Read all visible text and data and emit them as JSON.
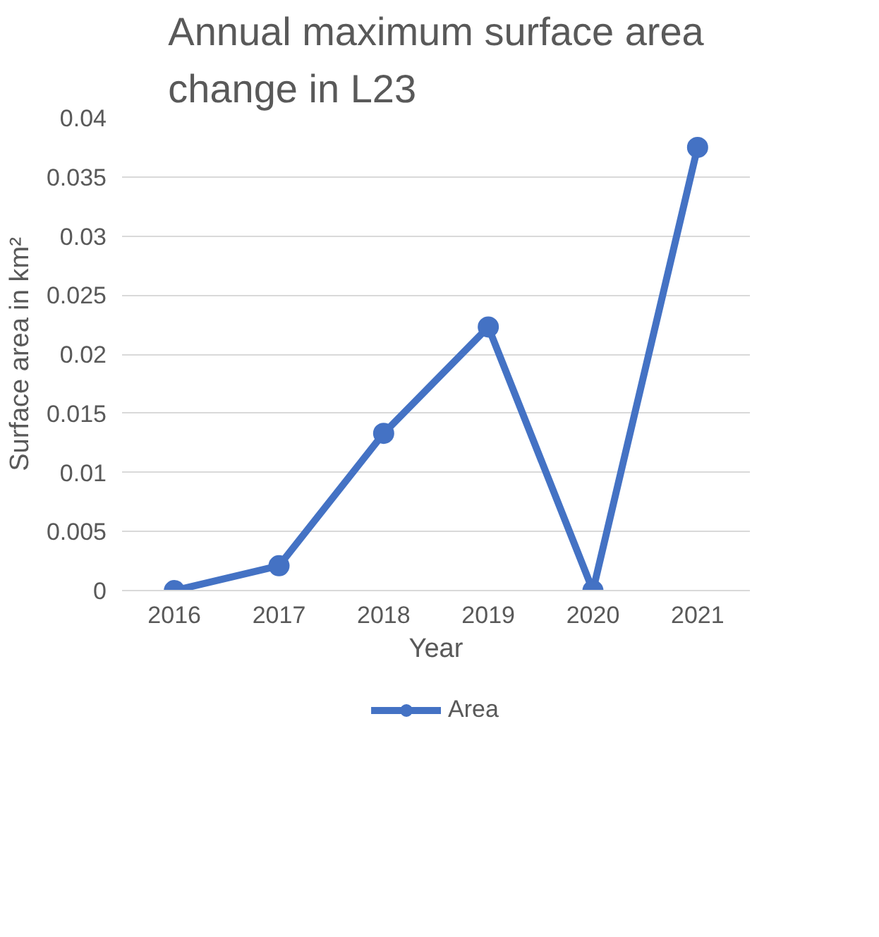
{
  "chart_data": {
    "type": "line",
    "title": "Annual maximum surface area change in L23",
    "xlabel": "Year",
    "ylabel": "Surface area in km²",
    "categories": [
      "2016",
      "2017",
      "2018",
      "2019",
      "2020",
      "2021"
    ],
    "series": [
      {
        "name": "Area",
        "color": "#4472c4",
        "values": [
          0,
          0.0021,
          0.0133,
          0.0223,
          0,
          0.0375
        ]
      }
    ],
    "ylim": [
      0,
      0.04
    ],
    "yticks": [
      0,
      0.005,
      0.01,
      0.015,
      0.02,
      0.025,
      0.03,
      0.035,
      0.04
    ],
    "grid": "y",
    "legend": "bottom",
    "marker": "circle"
  }
}
